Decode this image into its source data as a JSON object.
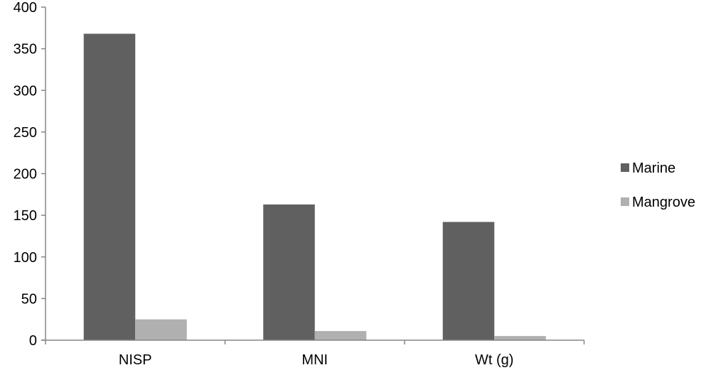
{
  "chart_data": {
    "type": "bar",
    "title": "",
    "xlabel": "",
    "ylabel": "",
    "categories": [
      "NISP",
      "MNI",
      "Wt (g)"
    ],
    "series": [
      {
        "name": "Marine",
        "values": [
          368,
          163,
          142
        ],
        "color": "#606060"
      },
      {
        "name": "Mangrove",
        "values": [
          25,
          11,
          5
        ],
        "color": "#b0b0b0"
      }
    ],
    "ylim": [
      0,
      400
    ],
    "yticks": [
      0,
      50,
      100,
      150,
      200,
      250,
      300,
      350,
      400
    ],
    "grid": false,
    "legend_position": "right",
    "axis_color": "#868686"
  }
}
